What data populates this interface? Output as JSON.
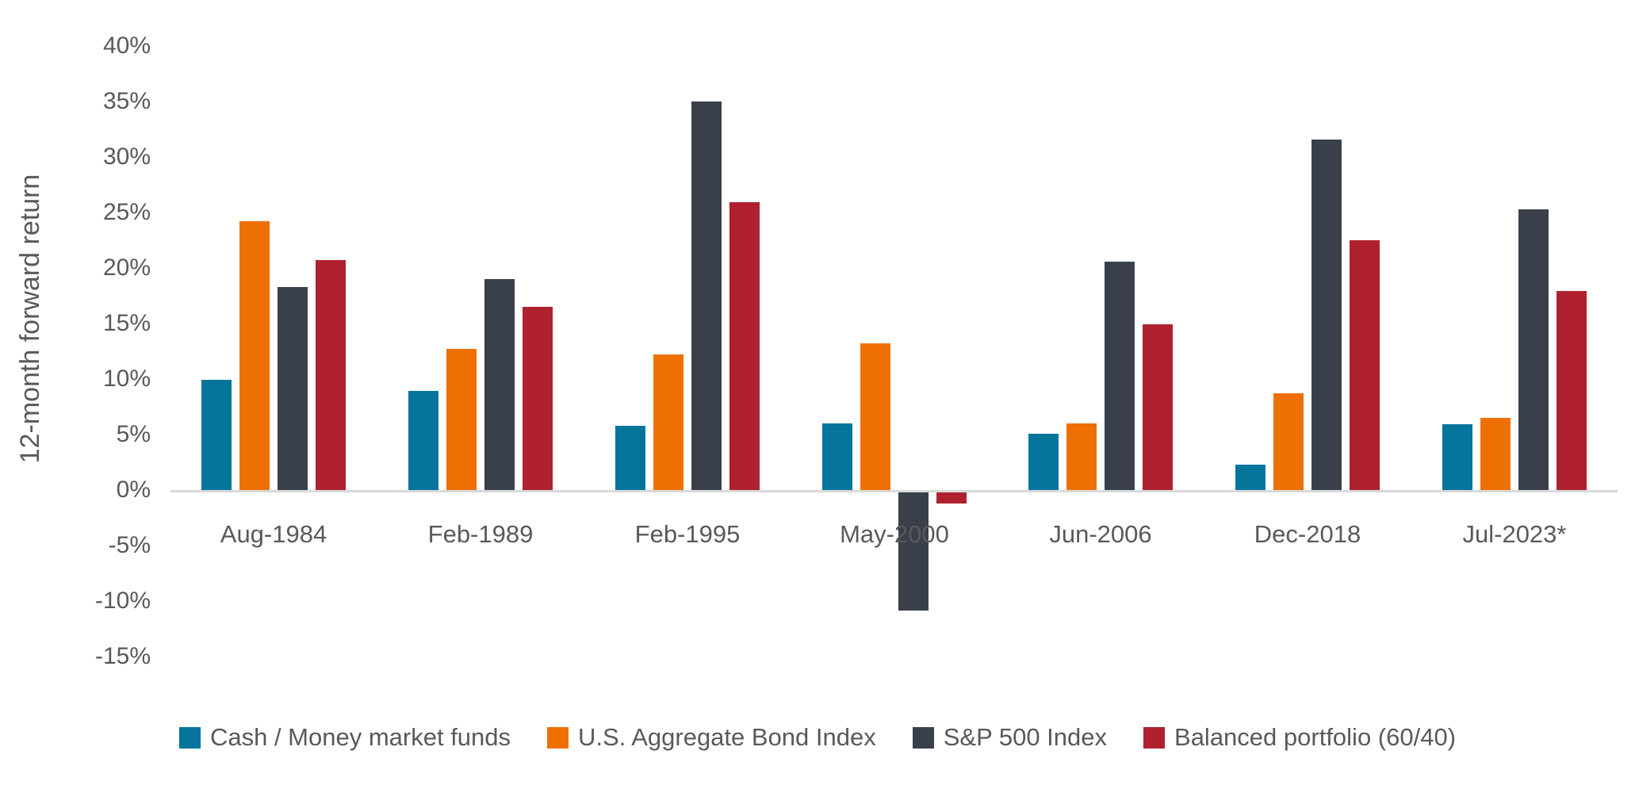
{
  "style": {
    "text_color": "#595959",
    "axis_line_color": "#d9d9d9",
    "background": "#ffffff"
  },
  "y_axis": {
    "title": "12-month forward return",
    "tick_labels": [
      "40%",
      "35%",
      "30%",
      "25%",
      "20%",
      "15%",
      "10%",
      "5%",
      "0%",
      "-5%",
      "-10%",
      "-15%"
    ],
    "tick_values": [
      40,
      35,
      30,
      25,
      20,
      15,
      10,
      5,
      0,
      -5,
      -10,
      -15
    ]
  },
  "legend": {
    "items": [
      {
        "label": "Cash / Money market funds",
        "color": "#05759b"
      },
      {
        "label": "U.S. Aggregate Bond Index",
        "color": "#ee7005"
      },
      {
        "label": "S&P 500 Index",
        "color": "#3a3f4c"
      },
      {
        "label": "Balanced portfolio (60/40)",
        "color": "#af212e"
      }
    ]
  },
  "chart_data": {
    "type": "bar",
    "title": "",
    "xlabel": "",
    "ylabel": "12-month forward return",
    "categories": [
      "Aug-1984",
      "Feb-1989",
      "Feb-1995",
      "May-2000",
      "Jun-2006",
      "Dec-2018",
      "Jul-2023*"
    ],
    "series": [
      {
        "name": "Cash / Money market funds",
        "color": "#05759b",
        "values": [
          9.9,
          8.9,
          5.8,
          6.0,
          5.1,
          2.3,
          5.9
        ]
      },
      {
        "name": "U.S. Aggregate Bond Index",
        "color": "#ee7005",
        "values": [
          24.2,
          12.7,
          12.2,
          13.2,
          6.0,
          8.7,
          6.5
        ]
      },
      {
        "name": "S&P 500 Index",
        "color": "#3a3f4c",
        "values": [
          18.3,
          19.0,
          35.0,
          -10.7,
          20.6,
          31.6,
          25.3
        ]
      },
      {
        "name": "Balanced portfolio (60/40)",
        "color": "#af212e",
        "values": [
          20.7,
          16.5,
          25.9,
          -1.1,
          14.9,
          22.5,
          17.9
        ]
      }
    ],
    "ylim": [
      -15,
      40
    ],
    "ytick_step": 5,
    "grid": false,
    "legend_position": "bottom"
  }
}
